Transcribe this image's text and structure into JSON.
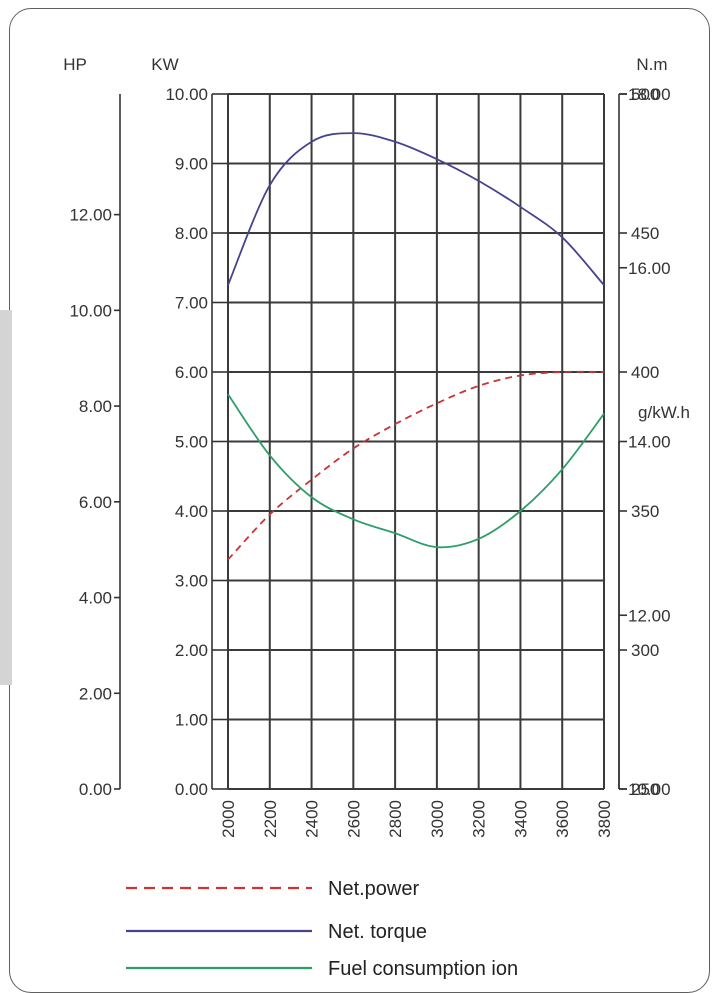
{
  "chart_data": {
    "type": "line",
    "title": "",
    "x": [
      2000,
      2200,
      2400,
      2600,
      2800,
      3000,
      3200,
      3400,
      3600,
      3800
    ],
    "axes": {
      "hp": {
        "label": "HP",
        "range": [
          0,
          14.52
        ],
        "ticks": [
          "0.00",
          "2.00",
          "4.00",
          "6.00",
          "8.00",
          "10.00",
          "12.00"
        ]
      },
      "kw": {
        "label": "KW",
        "range": [
          0,
          10
        ],
        "ticks": [
          "0.00",
          "1.00",
          "2.00",
          "3.00",
          "4.00",
          "5.00",
          "6.00",
          "7.00",
          "8.00",
          "9.00",
          "10.00"
        ]
      },
      "torque": {
        "label": "N.m",
        "range": [
          10,
          18
        ],
        "ticks": [
          "10.00",
          "12.00",
          "14.00",
          "16.00",
          "18.00"
        ]
      },
      "fuel": {
        "label": "g/kW.h",
        "range": [
          250,
          500
        ],
        "ticks": [
          "250",
          "300",
          "350",
          "400",
          "450",
          "500"
        ]
      }
    },
    "series": [
      {
        "name": "Net.power",
        "axis": "kw",
        "color": "#cc3333",
        "dash": true,
        "values": [
          3.3,
          3.95,
          4.45,
          4.9,
          5.25,
          5.55,
          5.8,
          5.95,
          6.0,
          6.0
        ]
      },
      {
        "name": "Net. torque",
        "axis": "torque",
        "color": "#45458f",
        "dash": false,
        "values": [
          15.8,
          16.95,
          17.45,
          17.55,
          17.45,
          17.25,
          17.0,
          16.7,
          16.35,
          15.8
        ]
      },
      {
        "name": "Fuel consumption ion",
        "axis": "fuel",
        "color": "#2e9e68",
        "dash": false,
        "values": [
          392,
          370,
          355,
          347,
          342,
          337,
          340,
          350,
          365,
          385
        ]
      }
    ],
    "grid": true,
    "legend_position": "bottom-left"
  }
}
